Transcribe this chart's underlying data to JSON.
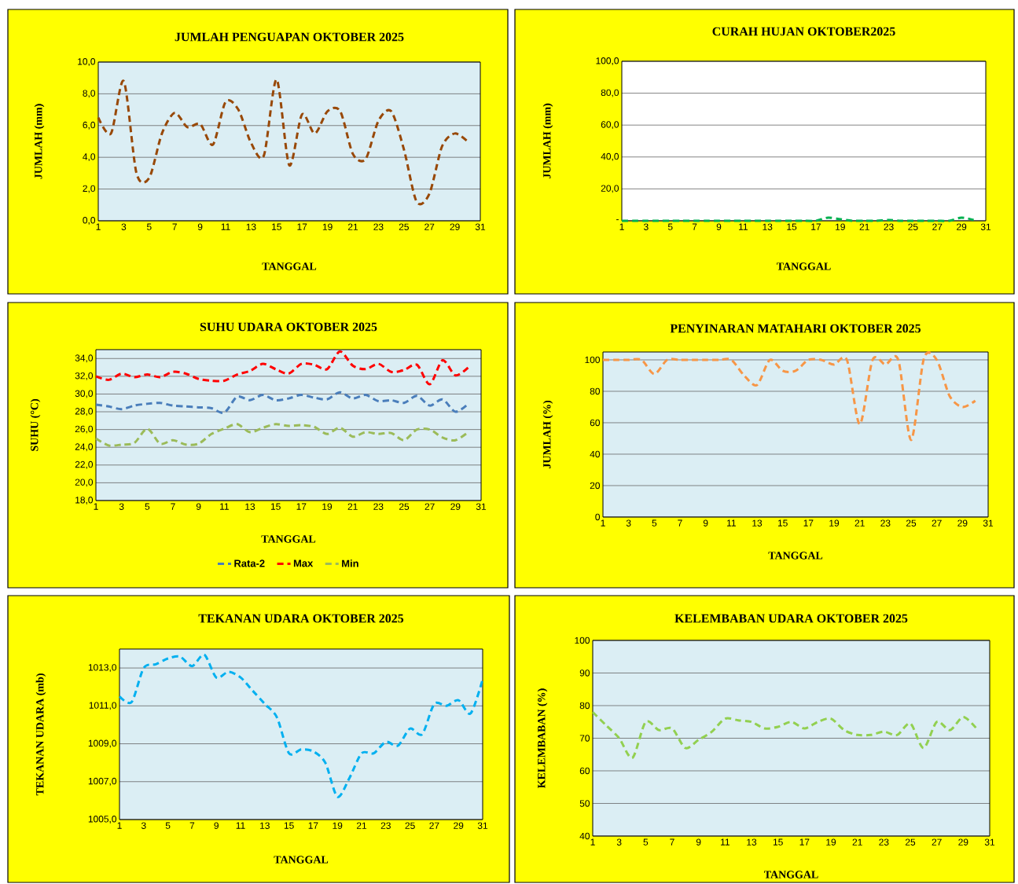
{
  "chart_data": [
    {
      "type": "line",
      "title": "JUMLAH PENGUAPAN OKTOBER 2025",
      "xlabel": "TANGGAL",
      "ylabel": "JUMLAH  (mm)",
      "x": [
        1,
        2,
        3,
        4,
        5,
        6,
        7,
        8,
        9,
        10,
        11,
        12,
        13,
        14,
        15,
        16,
        17,
        18,
        19,
        20,
        21,
        22,
        23,
        24,
        25,
        26,
        27,
        28,
        29,
        30
      ],
      "series": [
        {
          "color": "#984807",
          "values": [
            6.5,
            5.5,
            8.8,
            3.0,
            2.7,
            5.5,
            6.8,
            5.9,
            6.1,
            4.8,
            7.5,
            7.0,
            4.9,
            4.1,
            8.9,
            3.5,
            6.7,
            5.5,
            6.9,
            6.9,
            4.2,
            3.9,
            6.3,
            6.9,
            4.5,
            1.2,
            1.7,
            4.7,
            5.5,
            5.0
          ]
        }
      ],
      "xlim": [
        1,
        31
      ],
      "xticks": [
        1,
        3,
        5,
        7,
        9,
        11,
        13,
        15,
        17,
        19,
        21,
        23,
        25,
        27,
        29,
        31
      ],
      "ylim": [
        0,
        10
      ],
      "yticks": [
        {
          "value": 0,
          "label": "0,0"
        },
        {
          "value": 2,
          "label": "2,0"
        },
        {
          "value": 4,
          "label": "4,0"
        },
        {
          "value": 6,
          "label": "6,0"
        },
        {
          "value": 8,
          "label": "8,0"
        },
        {
          "value": 10,
          "label": "10,0"
        }
      ],
      "grid": "y",
      "line_style": "dashed"
    },
    {
      "type": "line",
      "title": "CURAH HUJAN OKTOBER2025",
      "xlabel": "TANGGAL",
      "ylabel": "JUMLAH (mm)",
      "x": [
        1,
        2,
        3,
        4,
        5,
        6,
        7,
        8,
        9,
        10,
        11,
        12,
        13,
        14,
        15,
        16,
        17,
        18,
        19,
        20,
        21,
        22,
        23,
        24,
        25,
        26,
        27,
        28,
        29,
        30
      ],
      "series": [
        {
          "color": "#00b050",
          "values": [
            0,
            0,
            0,
            0,
            0,
            0,
            0,
            0,
            0,
            0,
            0,
            0,
            0,
            0,
            0,
            0,
            0,
            2.0,
            1.0,
            0,
            0,
            0,
            0.5,
            0,
            0,
            0,
            0,
            0,
            2.0,
            0.5
          ]
        }
      ],
      "xlim": [
        1,
        31
      ],
      "xticks": [
        1,
        3,
        5,
        7,
        9,
        11,
        13,
        15,
        17,
        19,
        21,
        23,
        25,
        27,
        29,
        31
      ],
      "ylim": [
        0,
        100
      ],
      "yticks": [
        {
          "value": 0,
          "label": "-"
        },
        {
          "value": 20,
          "label": "20,0"
        },
        {
          "value": 40,
          "label": "40,0"
        },
        {
          "value": 60,
          "label": "60,0"
        },
        {
          "value": 80,
          "label": "80,0"
        },
        {
          "value": 100,
          "label": "100,0"
        }
      ],
      "grid": "y",
      "line_style": "dashed"
    },
    {
      "type": "line",
      "title": "SUHU UDARA OKTOBER 2025",
      "xlabel": "TANGGAL",
      "ylabel": "SUHU (°C)",
      "x": [
        1,
        2,
        3,
        4,
        5,
        6,
        7,
        8,
        9,
        10,
        11,
        12,
        13,
        14,
        15,
        16,
        17,
        18,
        19,
        20,
        21,
        22,
        23,
        24,
        25,
        26,
        27,
        28,
        29,
        30
      ],
      "series": [
        {
          "name": "Rata-2",
          "color": "#4a7ebb",
          "values": [
            28.8,
            28.6,
            28.3,
            28.7,
            28.9,
            29.0,
            28.7,
            28.6,
            28.5,
            28.4,
            27.9,
            29.7,
            29.3,
            29.9,
            29.3,
            29.5,
            29.9,
            29.6,
            29.4,
            30.2,
            29.5,
            29.9,
            29.2,
            29.3,
            29.0,
            29.8,
            28.7,
            29.4,
            28.0,
            28.9
          ]
        },
        {
          "name": "Max",
          "color": "#ff0000",
          "values": [
            32.0,
            31.6,
            32.3,
            31.9,
            32.2,
            31.9,
            32.5,
            32.3,
            31.7,
            31.5,
            31.5,
            32.2,
            32.6,
            33.4,
            32.8,
            32.3,
            33.4,
            33.3,
            32.8,
            34.8,
            33.2,
            32.8,
            33.4,
            32.5,
            32.7,
            33.3,
            31.1,
            33.8,
            32.1,
            33.0
          ]
        },
        {
          "name": "Min",
          "color": "#9bbb59",
          "values": [
            25.0,
            24.2,
            24.3,
            24.5,
            26.1,
            24.4,
            24.8,
            24.3,
            24.4,
            25.5,
            26.1,
            26.6,
            25.7,
            26.2,
            26.6,
            26.4,
            26.5,
            26.3,
            25.5,
            26.2,
            25.2,
            25.7,
            25.5,
            25.6,
            24.8,
            26.0,
            26.0,
            25.1,
            24.8,
            25.7
          ]
        }
      ],
      "xlim": [
        1,
        31
      ],
      "xticks": [
        1,
        3,
        5,
        7,
        9,
        11,
        13,
        15,
        17,
        19,
        21,
        23,
        25,
        27,
        29,
        31
      ],
      "ylim": [
        18,
        35
      ],
      "yticks": [
        {
          "value": 18,
          "label": "18,0"
        },
        {
          "value": 20,
          "label": "20,0"
        },
        {
          "value": 22,
          "label": "22,0"
        },
        {
          "value": 24,
          "label": "24,0"
        },
        {
          "value": 26,
          "label": "26,0"
        },
        {
          "value": 28,
          "label": "28,0"
        },
        {
          "value": 30,
          "label": "30,0"
        },
        {
          "value": 32,
          "label": "32,0"
        },
        {
          "value": 34,
          "label": "34,0"
        }
      ],
      "grid": "y",
      "line_style": "dashed",
      "legend": "bottom"
    },
    {
      "type": "line",
      "title": "PENYINARAN MATAHARI OKTOBER 2025",
      "xlabel": "TANGGAL",
      "ylabel": "JUMLAH (%)",
      "x": [
        1,
        2,
        3,
        4,
        5,
        6,
        7,
        8,
        9,
        10,
        11,
        12,
        13,
        14,
        15,
        16,
        17,
        18,
        19,
        20,
        21,
        22,
        23,
        24,
        25,
        26,
        27,
        28,
        29,
        30
      ],
      "series": [
        {
          "color": "#f79646",
          "values": [
            100,
            100,
            100,
            100,
            91,
            100,
            100,
            100,
            100,
            100,
            100,
            90,
            84,
            100,
            93,
            93,
            100,
            100,
            97,
            100,
            59,
            100,
            97,
            100,
            49,
            101,
            100,
            77,
            70,
            74
          ]
        }
      ],
      "xlim": [
        1,
        31
      ],
      "xticks": [
        1,
        3,
        5,
        7,
        9,
        11,
        13,
        15,
        17,
        19,
        21,
        23,
        25,
        27,
        29,
        31
      ],
      "ylim": [
        0,
        105
      ],
      "yticks": [
        0,
        20,
        40,
        60,
        80,
        100
      ],
      "grid": "y",
      "line_style": "dashed"
    },
    {
      "type": "line",
      "title": "TEKANAN UDARA OKTOBER 2025",
      "xlabel": "TANGGAL",
      "ylabel": "TEKANAN UDARA (mb)",
      "x": [
        1,
        2,
        3,
        4,
        5,
        6,
        7,
        8,
        9,
        10,
        11,
        12,
        13,
        14,
        15,
        16,
        17,
        18,
        19,
        20,
        21,
        22,
        23,
        24,
        25,
        26,
        27,
        28,
        29,
        30,
        31
      ],
      "series": [
        {
          "color": "#00b0f0",
          "values": [
            1011.5,
            1011.2,
            1013.0,
            1013.2,
            1013.5,
            1013.6,
            1013.1,
            1013.7,
            1012.5,
            1012.8,
            1012.5,
            1011.8,
            1011.1,
            1010.4,
            1008.5,
            1008.7,
            1008.6,
            1008.0,
            1006.2,
            1007.2,
            1008.5,
            1008.5,
            1009.1,
            1008.9,
            1009.8,
            1009.5,
            1011.1,
            1011.0,
            1011.3,
            1010.6,
            1012.4
          ]
        }
      ],
      "xlim": [
        1,
        31
      ],
      "xticks": [
        1,
        3,
        5,
        7,
        9,
        11,
        13,
        15,
        17,
        19,
        21,
        23,
        25,
        27,
        29,
        31
      ],
      "ylim": [
        1005,
        1014
      ],
      "yticks": [
        {
          "value": 1005,
          "label": "1005,0"
        },
        {
          "value": 1007,
          "label": "1007,0"
        },
        {
          "value": 1009,
          "label": "1009,0"
        },
        {
          "value": 1011,
          "label": "1011,0"
        },
        {
          "value": 1013,
          "label": "1013,0"
        }
      ],
      "grid": "y",
      "line_style": "dashed"
    },
    {
      "type": "line",
      "title": "KELEMBABAN UDARA OKTOBER 2025",
      "xlabel": "TANGGAL",
      "ylabel": "KELEMBABAN  (%)",
      "x": [
        1,
        2,
        3,
        4,
        5,
        6,
        7,
        8,
        9,
        10,
        11,
        12,
        13,
        14,
        15,
        16,
        17,
        18,
        19,
        20,
        21,
        22,
        23,
        24,
        25,
        26,
        27,
        28,
        29,
        30
      ],
      "series": [
        {
          "color": "#92d050",
          "values": [
            78,
            74,
            70,
            64,
            75,
            72.5,
            73,
            67,
            69.5,
            72,
            76,
            75.5,
            75,
            73,
            73.5,
            75,
            73,
            75,
            76,
            72.5,
            71,
            71,
            72,
            71,
            74.5,
            67,
            75,
            72.5,
            76.5,
            73
          ]
        }
      ],
      "xlim": [
        1,
        31
      ],
      "xticks": [
        1,
        3,
        5,
        7,
        9,
        11,
        13,
        15,
        17,
        19,
        21,
        23,
        25,
        27,
        29,
        31
      ],
      "ylim": [
        40,
        100
      ],
      "yticks": [
        40,
        50,
        60,
        70,
        80,
        90,
        100
      ],
      "grid": "y",
      "line_style": "dashed"
    }
  ]
}
